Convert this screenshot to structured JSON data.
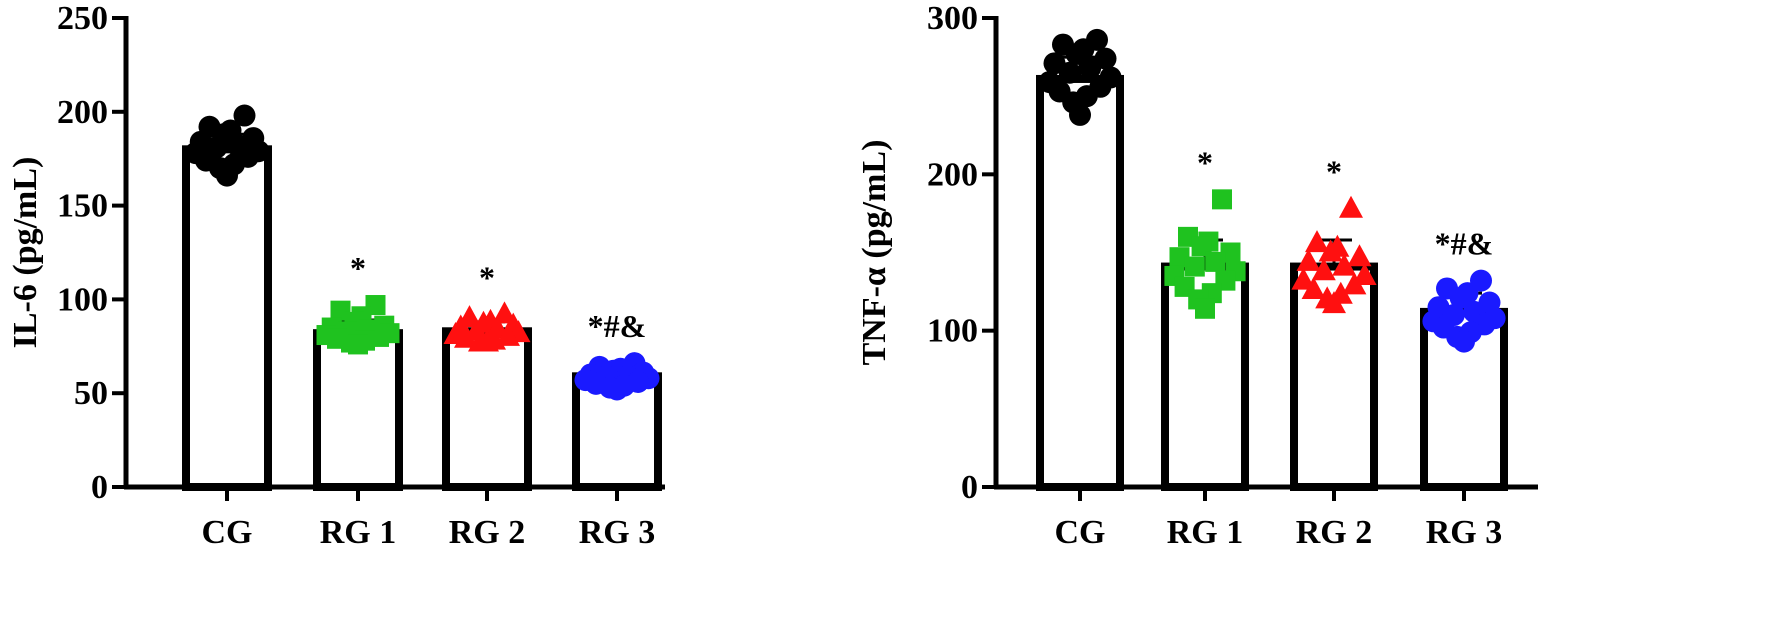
{
  "chart_data": [
    {
      "type": "bar",
      "ylabel": "IL-6 (pg/mL)",
      "xlabel": "",
      "ylim": [
        0,
        250
      ],
      "yticks": [
        0,
        50,
        100,
        150,
        200,
        250
      ],
      "categories": [
        "CG",
        "RG 1",
        "RG 2",
        "RG 3"
      ],
      "values": [
        180,
        82,
        83,
        59
      ],
      "sd": [
        8,
        7,
        5,
        4
      ],
      "significance": [
        "",
        "*",
        "*",
        "*#&"
      ],
      "marker_colors": [
        "#000000",
        "#1fc21f",
        "#ff1010",
        "#1a1aff"
      ],
      "marker_shapes": [
        "circle",
        "square",
        "triangle",
        "circle"
      ],
      "points": [
        [
          198,
          192,
          190,
          188,
          186,
          184,
          182,
          181,
          179,
          178,
          176,
          174,
          172,
          170,
          166
        ],
        [
          97,
          94,
          91,
          88,
          86,
          85,
          84,
          83,
          82,
          81,
          80,
          79,
          78,
          77,
          76
        ],
        [
          92,
          90,
          88,
          87,
          86,
          85,
          84,
          83,
          82,
          81,
          80,
          79,
          78,
          77,
          77
        ],
        [
          66,
          64,
          63,
          62,
          61,
          60,
          59,
          59,
          58,
          57,
          56,
          55,
          54,
          53,
          52
        ]
      ]
    },
    {
      "type": "bar",
      "ylabel": "TNF-α (pg/mL)",
      "xlabel": "",
      "ylim": [
        0,
        300
      ],
      "yticks": [
        0,
        100,
        200,
        300
      ],
      "categories": [
        "CG",
        "RG 1",
        "RG 2",
        "RG 3"
      ],
      "values": [
        261,
        141,
        141,
        112
      ],
      "sd": [
        14,
        17,
        17,
        12
      ],
      "significance": [
        "",
        "*",
        "*",
        "*#&"
      ],
      "marker_colors": [
        "#000000",
        "#1fc21f",
        "#ff1010",
        "#1a1aff"
      ],
      "marker_shapes": [
        "circle",
        "square",
        "triangle",
        "circle"
      ],
      "points": [
        [
          286,
          283,
          280,
          277,
          274,
          271,
          268,
          265,
          262,
          259,
          256,
          253,
          250,
          246,
          238
        ],
        [
          184,
          160,
          157,
          154,
          150,
          147,
          144,
          141,
          138,
          135,
          132,
          128,
          124,
          120,
          114
        ],
        [
          178,
          156,
          153,
          150,
          147,
          144,
          141,
          138,
          135,
          132,
          129,
          126,
          123,
          120,
          117
        ],
        [
          132,
          127,
          124,
          121,
          118,
          115,
          112,
          110,
          108,
          106,
          104,
          102,
          99,
          96,
          93
        ]
      ]
    }
  ]
}
